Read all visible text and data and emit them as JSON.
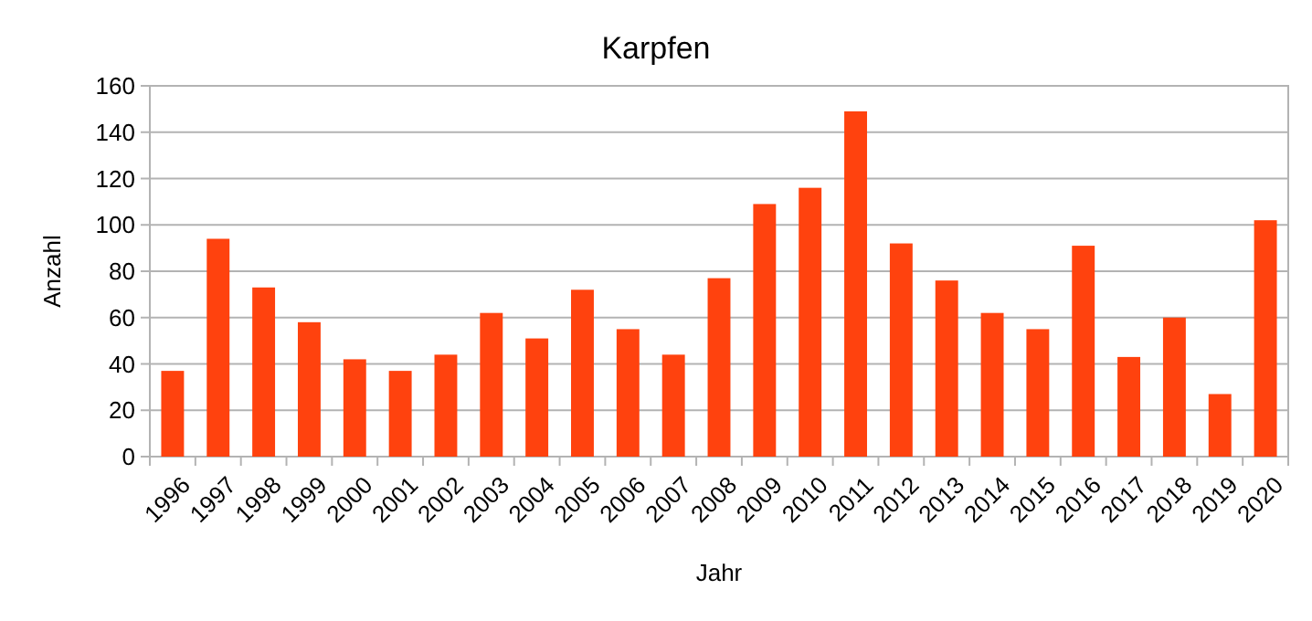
{
  "chart_data": {
    "type": "bar",
    "title": "Karpfen",
    "xlabel": "Jahr",
    "ylabel": "Anzahl",
    "categories": [
      "1996",
      "1997",
      "1998",
      "1999",
      "2000",
      "2001",
      "2002",
      "2003",
      "2004",
      "2005",
      "2006",
      "2007",
      "2008",
      "2009",
      "2010",
      "2011",
      "2012",
      "2013",
      "2014",
      "2015",
      "2016",
      "2017",
      "2018",
      "2019",
      "2020"
    ],
    "values": [
      37,
      94,
      73,
      58,
      42,
      37,
      44,
      62,
      51,
      72,
      55,
      44,
      77,
      109,
      116,
      149,
      92,
      76,
      62,
      55,
      91,
      43,
      60,
      27,
      102
    ],
    "color": "#ff420e",
    "ylim": [
      0,
      160
    ],
    "yticks": [
      0,
      20,
      40,
      60,
      80,
      100,
      120,
      140,
      160
    ],
    "grid": "y"
  }
}
